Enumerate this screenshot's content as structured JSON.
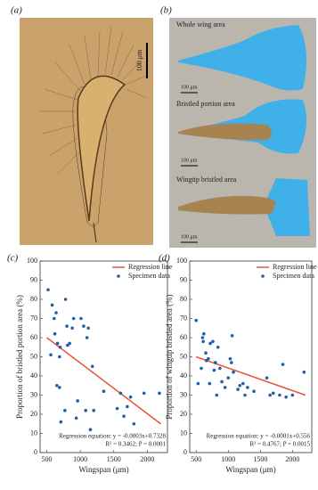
{
  "panels": {
    "a": "(a)",
    "b": "(b)",
    "c": "(c)",
    "d": "(d)"
  },
  "image_a": {
    "scale": "100 μm"
  },
  "image_b": {
    "labels": [
      "Whole wing area",
      "Bristled portion area",
      "Wingtip bristled area"
    ],
    "scales": [
      "100 μm",
      "100 μm",
      "100 μm"
    ]
  },
  "chart_data": [
    {
      "type": "scatter",
      "xlabel": "Wingspan (μm)",
      "ylabel": "Proportion of bristled portion area (%)",
      "xlim": [
        400,
        2300
      ],
      "xticks": [
        500,
        1000,
        1500,
        2000
      ],
      "ylim": [
        0,
        100
      ],
      "yticks": [
        0,
        10,
        20,
        30,
        40,
        50,
        60,
        70,
        80,
        90,
        100
      ],
      "legend": "upper right",
      "annotations": [
        "Regression equation: y = -0.0003x+0.7328",
        "R² = 0.3462; P = 0.0001"
      ],
      "series": [
        {
          "name": "Regression line",
          "type": "line",
          "color": "#e8543a",
          "x": [
            500,
            2200
          ],
          "values": [
            60,
            15
          ]
        },
        {
          "name": "Specimen data",
          "type": "scatter",
          "color": "#1f5fa8",
          "x": [
            520,
            560,
            580,
            610,
            620,
            640,
            650,
            660,
            690,
            690,
            700,
            710,
            770,
            780,
            800,
            810,
            840,
            880,
            900,
            940,
            960,
            1010,
            1050,
            1080,
            1100,
            1120,
            1150,
            1180,
            1200,
            1350,
            1550,
            1600,
            1650,
            1700,
            1750,
            1800,
            1950,
            2180
          ],
          "values": [
            85,
            51,
            77,
            70,
            62,
            73,
            35,
            57,
            34,
            50,
            55,
            16,
            22,
            80,
            66,
            56,
            57,
            65,
            70,
            18,
            27,
            70,
            66,
            22,
            60,
            65,
            12,
            45,
            22,
            32,
            23,
            31,
            19,
            24,
            29,
            15,
            31,
            31
          ]
        }
      ]
    },
    {
      "type": "scatter",
      "xlabel": "Wingspan (μm)",
      "ylabel": "Proportion of wingtip bristled area (%)",
      "xlim": [
        400,
        2300
      ],
      "xticks": [
        500,
        1000,
        1500,
        2000
      ],
      "ylim": [
        0,
        100
      ],
      "yticks": [
        0,
        10,
        20,
        30,
        40,
        50,
        60,
        70,
        80,
        90,
        100
      ],
      "legend": "upper right",
      "annotations": [
        "Regression equation: y = -0.0001x+0.556",
        "R² = 0.4767; P = 0.0015"
      ],
      "series": [
        {
          "name": "Regression line",
          "type": "line",
          "color": "#e8543a",
          "x": [
            500,
            2200
          ],
          "values": [
            50,
            30
          ]
        },
        {
          "name": "Specimen data",
          "type": "scatter",
          "color": "#1f5fa8",
          "x": [
            500,
            530,
            580,
            600,
            610,
            620,
            650,
            660,
            690,
            710,
            720,
            760,
            780,
            800,
            820,
            840,
            870,
            900,
            950,
            1000,
            1030,
            1050,
            1060,
            1080,
            1150,
            1180,
            1230,
            1260,
            1300,
            1400,
            1600,
            1650,
            1700,
            1800,
            1850,
            1900,
            2000,
            2180
          ],
          "values": [
            69,
            36,
            44,
            60,
            58,
            62,
            52,
            48,
            49,
            36,
            57,
            58,
            43,
            47,
            30,
            55,
            44,
            37,
            34,
            39,
            49,
            47,
            61,
            42,
            33,
            35,
            36,
            30,
            34,
            32,
            39,
            30,
            31,
            30,
            46,
            29,
            30,
            42
          ]
        }
      ]
    }
  ]
}
